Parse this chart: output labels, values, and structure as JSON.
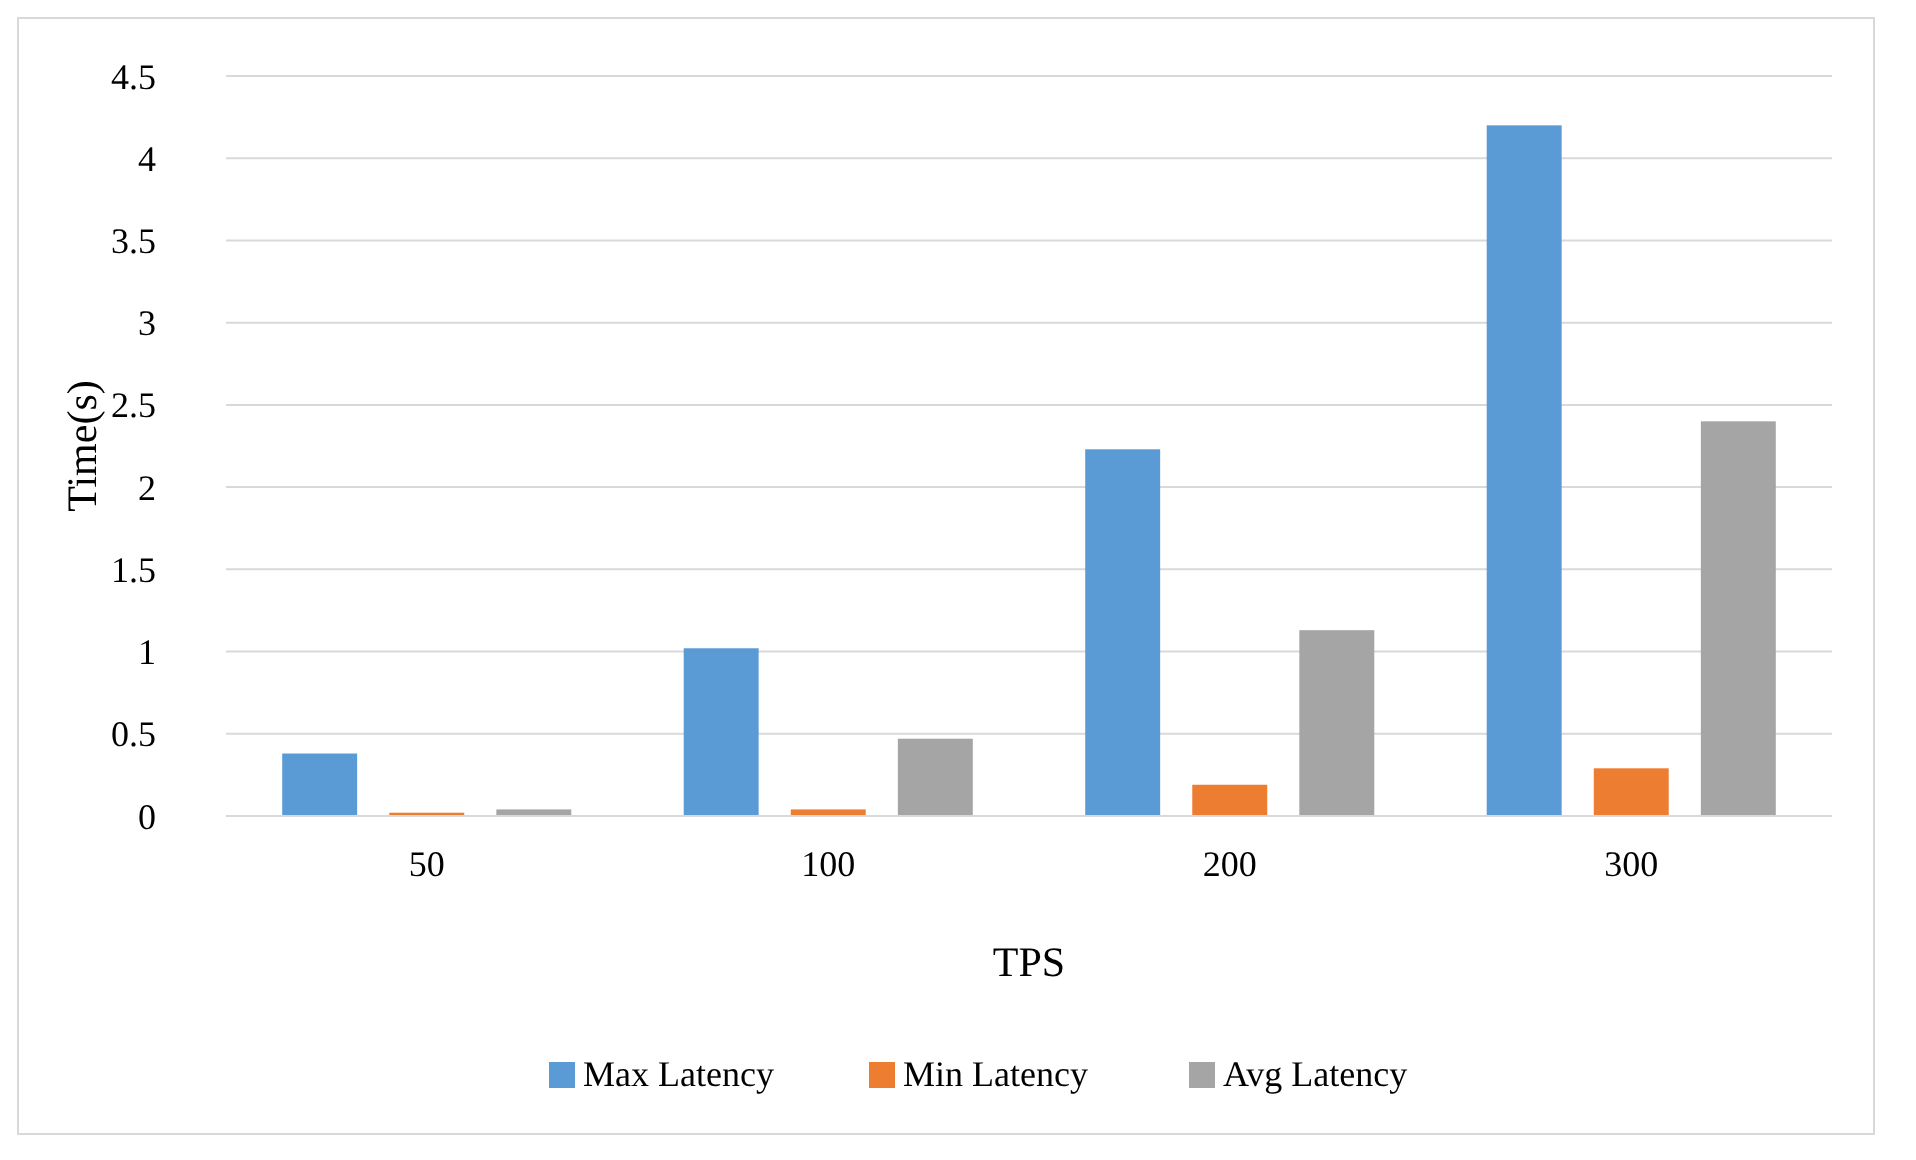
{
  "chart_data": {
    "type": "bar",
    "xlabel": "TPS",
    "ylabel": "Time(s)",
    "categories": [
      "50",
      "100",
      "200",
      "300"
    ],
    "series": [
      {
        "name": "Max Latency",
        "color": "#5b9bd5",
        "values": [
          0.38,
          1.02,
          2.23,
          4.2
        ]
      },
      {
        "name": "Min Latency",
        "color": "#ed7d31",
        "values": [
          0.02,
          0.04,
          0.19,
          0.29
        ]
      },
      {
        "name": "Avg Latency",
        "color": "#a5a5a5",
        "values": [
          0.04,
          0.47,
          1.13,
          2.4
        ]
      }
    ],
    "ylim": [
      0,
      4.5
    ],
    "yticks": [
      0,
      0.5,
      1,
      1.5,
      2,
      2.5,
      3,
      3.5,
      4,
      4.5
    ],
    "grid": "y",
    "legend": "bottom"
  }
}
